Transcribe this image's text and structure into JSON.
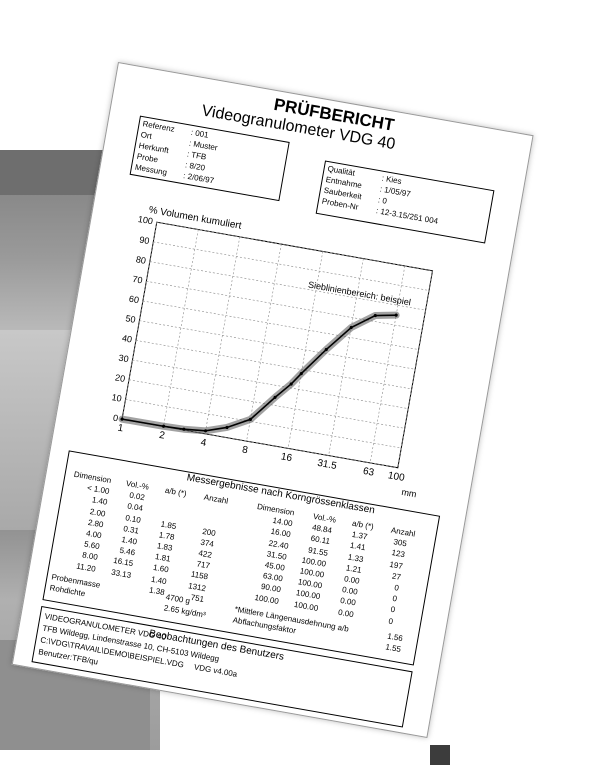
{
  "report": {
    "title": "PRÜFBERICHT",
    "subtitle": "Videogranulometer VDG 40",
    "left_info": [
      {
        "label": "Referenz",
        "value": ": 001"
      },
      {
        "label": "Ort",
        "value": ": Muster"
      },
      {
        "label": "Herkunft",
        "value": ": TFB"
      },
      {
        "label": "Probe",
        "value": ": 8/20"
      },
      {
        "label": "Messung",
        "value": ": 2/06/97"
      }
    ],
    "right_info": [
      {
        "label": "Qualität",
        "value": ": Kies"
      },
      {
        "label": "Entnahme",
        "value": ": 1/05/97"
      },
      {
        "label": "Sauberkeit",
        "value": ": 0"
      },
      {
        "label": "Proben-Nr",
        "value": ": 12-3.15/251 004"
      }
    ]
  },
  "chart_data": {
    "type": "scatter",
    "ylabel": "% Volumen kumuliert",
    "annotation": "Sieblinienbereich: beispiel",
    "xunit": "mm",
    "xticks": [
      "1",
      "2",
      "4",
      "8",
      "16",
      "31.5",
      "63",
      "100"
    ],
    "yticks": [
      "0",
      "10",
      "20",
      "30",
      "40",
      "50",
      "60",
      "70",
      "80",
      "90",
      "100"
    ],
    "ylim": [
      0,
      100
    ],
    "xscale": "log",
    "x": [
      1,
      2,
      2.8,
      4,
      5.6,
      8,
      11.2,
      14,
      16,
      22.4,
      31.5,
      45,
      63
    ],
    "y": [
      0,
      0.1,
      0.4,
      1.5,
      5,
      11,
      24,
      32,
      38,
      52,
      65,
      73,
      75
    ]
  },
  "table": {
    "title": "Messergebnisse nach Korngrössenklassen",
    "headers": [
      "Dimension",
      "Vol.-%",
      "a/b (*)",
      "Anzahl"
    ],
    "left_rows": [
      [
        "< 1.00",
        "0.02",
        "",
        ""
      ],
      [
        "1.40",
        "0.04",
        "",
        ""
      ],
      [
        "2.00",
        "0.10",
        "1.85",
        "200"
      ],
      [
        "2.80",
        "0.31",
        "1.78",
        "374"
      ],
      [
        "4.00",
        "1.40",
        "1.83",
        "422"
      ],
      [
        "5.60",
        "5.46",
        "1.81",
        "717"
      ],
      [
        "8.00",
        "16.15",
        "1.60",
        "1158"
      ],
      [
        "11.20",
        "33.13",
        "1.40",
        "1312"
      ],
      [
        "",
        "",
        "1.38",
        "751"
      ]
    ],
    "right_rows": [
      [
        "14.00",
        "48.84",
        "1.37",
        "305"
      ],
      [
        "16.00",
        "60.11",
        "1.41",
        "123"
      ],
      [
        "22.40",
        "91.55",
        "1.33",
        "197"
      ],
      [
        "31.50",
        "100.00",
        "1.21",
        "27"
      ],
      [
        "45.00",
        "100.00",
        "0.00",
        "0"
      ],
      [
        "63.00",
        "100.00",
        "0.00",
        "0"
      ],
      [
        "90.00",
        "100.00",
        "0.00",
        "0"
      ],
      [
        "100.00",
        "100.00",
        "0.00",
        "0"
      ]
    ],
    "probenmasse_label": "Probenmasse",
    "probenmasse_value": "4700 g",
    "rohdichte_label": "Rohdichte",
    "rohdichte_value": "2.65 kg/dm³",
    "note1": "*Mittlere Längenausdehnung a/b",
    "note1_value": "1.56",
    "note2": "Abflachungsfaktor",
    "note2_value": "1.55"
  },
  "footer": {
    "heading": "Beobachtungen des Benutzers",
    "lines": [
      "VIDEOGRANULOMETER VDG 40",
      "TFB Wildegg, Lindenstrasse 10, CH-5103 Wildegg",
      "C:\\VDG\\TRAVAIL\\DEMO\\BEISPIEL.VDG",
      "Benutzer:TFB/qu"
    ],
    "version": "VDG v4.00a"
  }
}
